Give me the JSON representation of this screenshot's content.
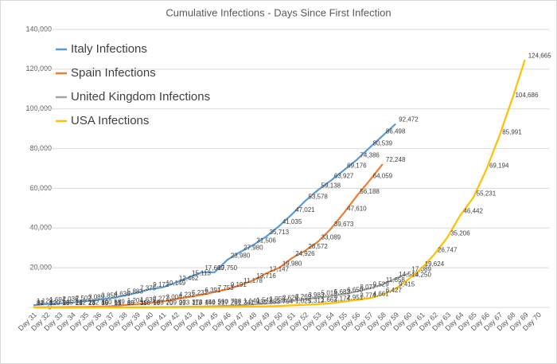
{
  "chart_data": {
    "type": "line",
    "title": "Cumulative Infections - Days Since First Infection",
    "categories": [
      "Day 31",
      "Day 32",
      "Day 33",
      "Day 34",
      "Day 35",
      "Day 36",
      "Day 37",
      "Day 38",
      "Day 39",
      "Day 40",
      "Day 41",
      "Day 42",
      "Day 43",
      "Day 44",
      "Day 45",
      "Day 46",
      "Day 47",
      "Day 48",
      "Day 49",
      "Day 50",
      "Day 51",
      "Day 52",
      "Day 53",
      "Day 54",
      "Day 55",
      "Day 56",
      "Day 57",
      "Day 58",
      "Day 59",
      "Day 60",
      "Day 61",
      "Day 62",
      "Day 63",
      "Day 64",
      "Day 65",
      "Day 66",
      "Day 67",
      "Day 68",
      "Day 69",
      "Day 70"
    ],
    "ylim": [
      0,
      140000
    ],
    "yticks": [
      0,
      {
        "value": 20000,
        "label": "20,000"
      },
      {
        "value": 40000,
        "label": "40,000"
      },
      {
        "value": 60000,
        "label": "60,000"
      },
      {
        "value": 80000,
        "label": "80,000"
      },
      {
        "value": 100000,
        "label": "100,000"
      },
      {
        "value": 120000,
        "label": "120,000"
      },
      {
        "value": 140000,
        "label": "140,000"
      }
    ],
    "grid": true,
    "legend": "top-left",
    "series": [
      {
        "name": "Italy Infections",
        "color": "#5b9bd5",
        "values": [
          1128,
          1694,
          2036,
          2502,
          3089,
          3858,
          4636,
          5883,
          7375,
          9172,
          10149,
          12462,
          15113,
          17660,
          17750,
          23980,
          27980,
          31506,
          35713,
          41035,
          47021,
          53578,
          59138,
          63927,
          69176,
          74386,
          80539,
          86498,
          92472,
          null,
          null,
          null,
          null,
          null,
          null,
          null,
          null,
          null,
          null,
          null
        ],
        "value_labels": [
          "1,128",
          "1,694",
          "2,036",
          "2,502",
          "3,089",
          "3,858",
          "4,636",
          "5,883",
          "7,375",
          "9,172",
          "10,149",
          "12,462",
          "15,113",
          "17,660",
          "17,750",
          "23,980",
          "27,980",
          "31,506",
          "35,713",
          "41,035",
          "47,021",
          "53,578",
          "59,138",
          "63,927",
          "69,176",
          "74,386",
          "80,539",
          "86,498",
          "92,472",
          null,
          null,
          null,
          null,
          null,
          null,
          null,
          null,
          null,
          null,
          null
        ]
      },
      {
        "name": "Spain Infections",
        "color": "#ed7d31",
        "values": [
          84,
          120,
          165,
          222,
          282,
          400,
          589,
          1204,
          1639,
          2277,
          3004,
          4231,
          5232,
          6391,
          7753,
          9191,
          11178,
          13716,
          17147,
          19980,
          24926,
          28572,
          33089,
          39673,
          47610,
          56188,
          64059,
          72248,
          null,
          null,
          null,
          null,
          null,
          null,
          null,
          null,
          null,
          null,
          null,
          null
        ],
        "value_labels": [
          "84",
          "120",
          "165",
          "222",
          "282",
          "400",
          "589",
          "1,204",
          "1,639",
          "2,277",
          "3,004",
          "4,231",
          "5,232",
          "6,391",
          "7,753",
          "9,191",
          "11,178",
          "13,716",
          "17,147",
          "19,980",
          "24,926",
          "28,572",
          "33,089",
          "39,673",
          "47,610",
          "56,188",
          "64,059",
          "72,248",
          null,
          null,
          null,
          null,
          null,
          null,
          null,
          null,
          null,
          null,
          null,
          null
        ]
      },
      {
        "name": "United Kingdom Infections",
        "color": "#a5a5a5",
        "values": [
          8,
          8,
          9,
          13,
          23,
          36,
          51,
          85,
          116,
          163,
          209,
          273,
          373,
          456,
          590,
          798,
          1140,
          1543,
          1950,
          2626,
          3269,
          3983,
          5018,
          5683,
          6650,
          8077,
          9529,
          11658,
          14543,
          17089,
          null,
          null,
          null,
          null,
          null,
          null,
          null,
          null,
          null,
          null
        ],
        "value_labels": [
          "8",
          "8",
          "9",
          "13",
          "23",
          "36",
          "51",
          "85",
          "116",
          "163",
          "209",
          "273",
          "373",
          "456",
          "590",
          "798",
          "1,140",
          "1,543",
          "1,950",
          "2,626",
          "3,269",
          "3,983",
          "5,018",
          "5,683",
          "6,650",
          "8,077",
          "9,529",
          "11,658",
          "14,543",
          "17,089",
          null,
          null,
          null,
          null,
          null,
          null,
          null,
          null,
          null,
          null
        ]
      },
      {
        "name": "USA Infections",
        "color": "#ffc000",
        "values": [
          12,
          12,
          13,
          14,
          14,
          15,
          15,
          15,
          35,
          59,
          70,
          99,
          118,
          149,
          217,
          261,
          341,
          435,
          553,
          754,
          1025,
          1312,
          1663,
          2174,
          2951,
          3774,
          4661,
          6427,
          9415,
          14250,
          19624,
          26747,
          35206,
          46442,
          55231,
          69194,
          85991,
          104686,
          124665,
          null
        ],
        "value_labels": [
          "12",
          "12",
          "13",
          "14",
          "14",
          "15",
          "15",
          "15",
          "35",
          "59",
          "70",
          "99",
          "118",
          "149",
          "217",
          "261",
          "341",
          "435",
          "553",
          "754",
          "1,025",
          "1,312",
          "1,663",
          "2,174",
          "2,951",
          "3,774",
          "4,661",
          "6,427",
          "9,415",
          "14,250",
          "19,624",
          "26,747",
          "35,206",
          "46,442",
          "55,231",
          "69,194",
          "85,991",
          "104,686",
          "124,665",
          null
        ]
      }
    ]
  }
}
